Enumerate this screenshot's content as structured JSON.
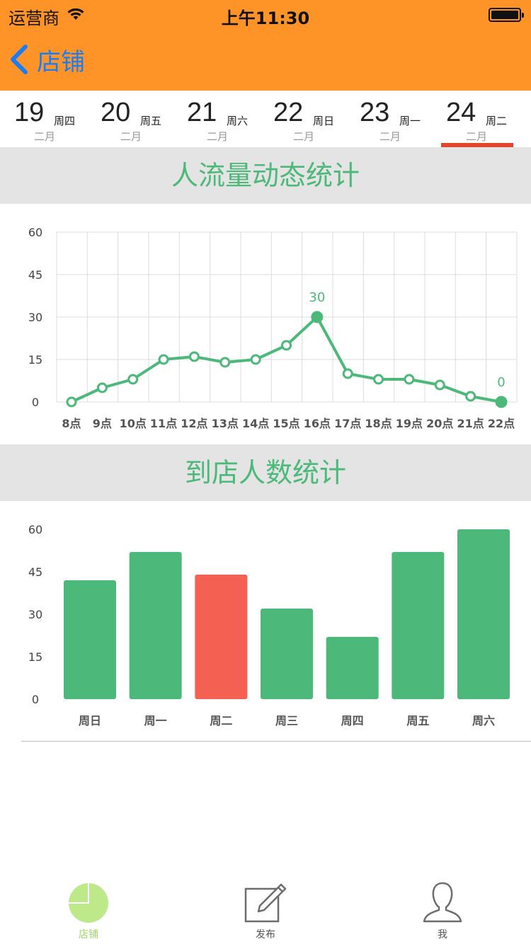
{
  "status_bar": {
    "carrier": "运营商",
    "time": "上午11:30"
  },
  "nav": {
    "back_label": "店铺"
  },
  "date_tabs": [
    {
      "day": "19",
      "weekday": "周四",
      "month": "二月",
      "selected": false
    },
    {
      "day": "20",
      "weekday": "周五",
      "month": "二月",
      "selected": false
    },
    {
      "day": "21",
      "weekday": "周六",
      "month": "二月",
      "selected": false
    },
    {
      "day": "22",
      "weekday": "周日",
      "month": "二月",
      "selected": false
    },
    {
      "day": "23",
      "weekday": "周一",
      "month": "二月",
      "selected": false
    },
    {
      "day": "24",
      "weekday": "周二",
      "month": "二月",
      "selected": true
    }
  ],
  "sections": {
    "traffic_title": "人流量动态统计",
    "visitors_title": "到店人数统计"
  },
  "colors": {
    "header": "#fe9428",
    "accent_green": "#4cb97a",
    "highlight_red": "#f46152",
    "selected_bar": "#e2462d",
    "back_blue": "#1a7df3"
  },
  "chart_data": [
    {
      "type": "line",
      "title": "人流量动态统计",
      "categories": [
        "8点",
        "9点",
        "10点",
        "11点",
        "12点",
        "13点",
        "14点",
        "15点",
        "16点",
        "17点",
        "18点",
        "19点",
        "20点",
        "21点",
        "22点"
      ],
      "values": [
        0,
        5,
        8,
        15,
        16,
        14,
        15,
        20,
        30,
        10,
        8,
        8,
        6,
        2,
        0
      ],
      "ylim": [
        0,
        60
      ],
      "yticks": [
        "0",
        "15",
        "30",
        "45",
        "60"
      ],
      "grid": true,
      "data_labels": [
        {
          "index": 8,
          "text": "30"
        },
        {
          "index": 14,
          "text": "0"
        }
      ]
    },
    {
      "type": "bar",
      "title": "到店人数统计",
      "categories": [
        "周日",
        "周一",
        "周二",
        "周三",
        "周四",
        "周五",
        "周六"
      ],
      "values": [
        42,
        52,
        44,
        32,
        22,
        52,
        60
      ],
      "highlight_index": 2,
      "ylim": [
        0,
        60
      ],
      "yticks": [
        "0",
        "15",
        "30",
        "45",
        "60"
      ],
      "grid": false
    }
  ],
  "tab_bar": [
    {
      "label": "店铺",
      "icon": "pie-chart-icon",
      "active": true
    },
    {
      "label": "发布",
      "icon": "compose-icon",
      "active": false
    },
    {
      "label": "我",
      "icon": "person-icon",
      "active": false
    }
  ]
}
